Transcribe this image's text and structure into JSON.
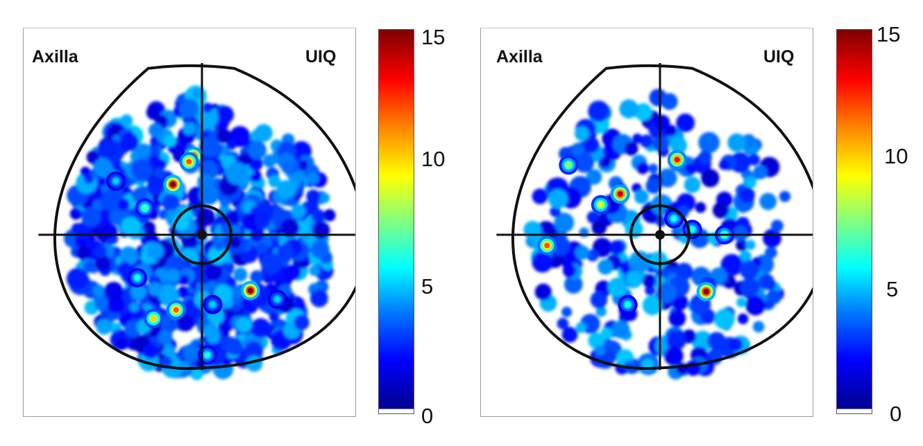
{
  "chart_data": [
    {
      "type": "heatmap",
      "quadrant_labels": [
        "Axilla",
        "UIQ"
      ],
      "colorbar": {
        "ticks": [
          "0",
          "5",
          "10",
          "15"
        ],
        "range": [
          0,
          15
        ],
        "colormap": "jet"
      },
      "hotspots": [
        {
          "x": -0.27,
          "y": 0.47,
          "value": 15
        },
        {
          "x": -0.08,
          "y": 0.73,
          "value": 14
        },
        {
          "x": -0.12,
          "y": 0.68,
          "value": 12
        },
        {
          "x": 0.45,
          "y": -0.52,
          "value": 15
        },
        {
          "x": -0.24,
          "y": -0.7,
          "value": 12
        },
        {
          "x": -0.45,
          "y": -0.78,
          "value": 10
        },
        {
          "x": -0.53,
          "y": 0.25,
          "value": 7
        },
        {
          "x": 0.05,
          "y": -1.12,
          "value": 6
        },
        {
          "x": -0.6,
          "y": -0.4,
          "value": 6
        },
        {
          "x": 0.1,
          "y": -0.65,
          "value": 5
        },
        {
          "x": 0.7,
          "y": -0.6,
          "value": 5
        },
        {
          "x": -0.8,
          "y": 0.5,
          "value": 5
        }
      ]
    },
    {
      "type": "heatmap",
      "quadrant_labels": [
        "Axilla",
        "UIQ"
      ],
      "colorbar": {
        "ticks": [
          "0",
          "5",
          "10",
          "15"
        ],
        "range": [
          0,
          15
        ],
        "colormap": "jet"
      },
      "hotspots": [
        {
          "x": -0.37,
          "y": 0.38,
          "value": 14
        },
        {
          "x": -1.05,
          "y": -0.1,
          "value": 12
        },
        {
          "x": 0.16,
          "y": 0.7,
          "value": 13
        },
        {
          "x": 0.43,
          "y": -0.53,
          "value": 15
        },
        {
          "x": -0.55,
          "y": 0.28,
          "value": 9
        },
        {
          "x": 0.13,
          "y": 0.15,
          "value": 6
        },
        {
          "x": -0.85,
          "y": 0.65,
          "value": 8
        },
        {
          "x": -0.3,
          "y": -0.65,
          "value": 6
        },
        {
          "x": 0.6,
          "y": 0.0,
          "value": 7
        },
        {
          "x": 0.3,
          "y": 0.05,
          "value": 6
        }
      ]
    }
  ]
}
